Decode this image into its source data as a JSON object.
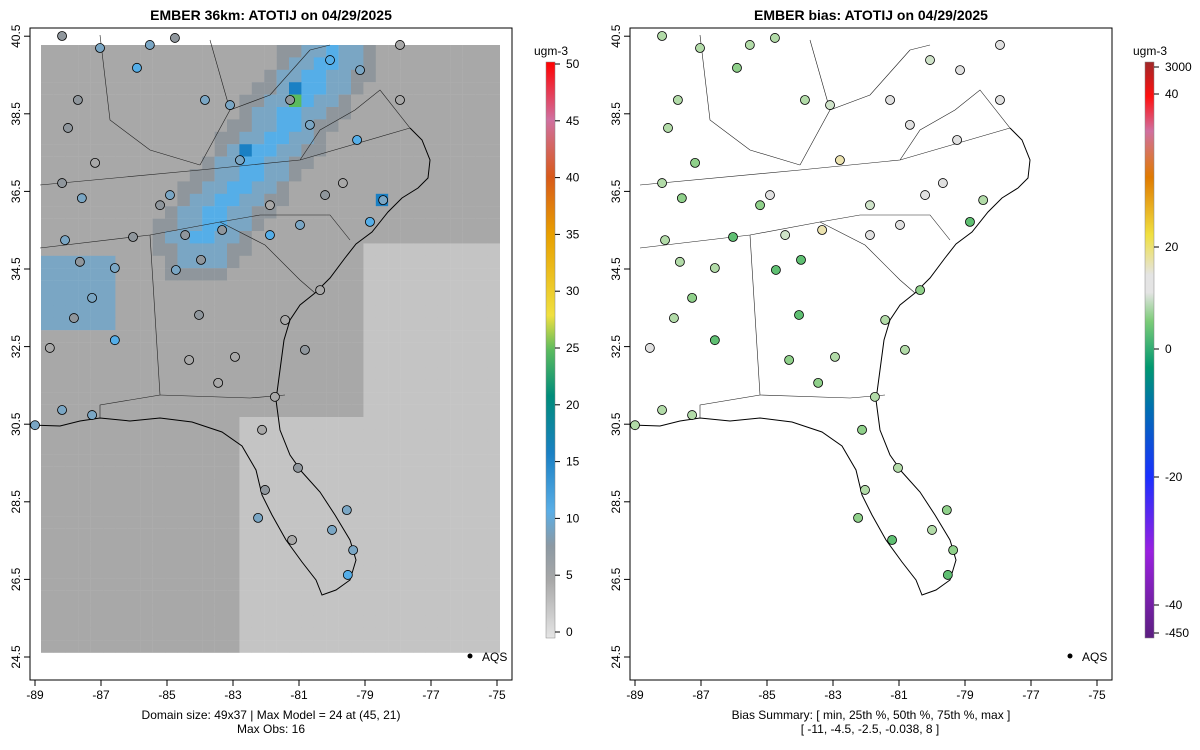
{
  "chart_data": [
    {
      "type": "heatmap",
      "title": "EMBER 36km: ATOTIJ on 04/29/2025",
      "units": "ugm-3",
      "xticks": [
        "-89",
        "-87",
        "-85",
        "-83",
        "-81",
        "-79",
        "-77",
        "-75"
      ],
      "yticks": [
        "24.5",
        "26.5",
        "28.5",
        "30.5",
        "32.5",
        "34.5",
        "36.5",
        "38.5",
        "40.5"
      ],
      "colorbar_ticks": [
        "0",
        "5",
        "10",
        "15",
        "20",
        "25",
        "30",
        "35",
        "40",
        "45",
        "50"
      ],
      "colorbar_range": [
        0,
        50
      ],
      "legend": "AQS",
      "legend_position": "bottom-right",
      "footer1": "Domain size: 49x37 | Max Model = 24 at (45, 21)",
      "footer2": "Max Obs: 16"
    },
    {
      "type": "scatter",
      "title": "EMBER bias: ATOTIJ on 04/29/2025",
      "units": "ugm-3",
      "xticks": [
        "-89",
        "-87",
        "-85",
        "-83",
        "-81",
        "-79",
        "-77",
        "-75"
      ],
      "yticks": [
        "24.5",
        "26.5",
        "28.5",
        "30.5",
        "32.5",
        "34.5",
        "36.5",
        "38.5",
        "40.5"
      ],
      "colorbar_ticks": [
        "3000",
        "40",
        "20",
        "0",
        "-20",
        "-40",
        "-450"
      ],
      "legend": "AQS",
      "legend_position": "bottom-right",
      "footer1": "Bias Summary: [ min, 25th %, 50th %, 75th %, max ]",
      "footer2": "[ -11,   -4.5,   -2.5,   -0.038,   8 ]"
    }
  ],
  "stations": [
    [
      -88.18,
      40.5,
      6,
      -3
    ],
    [
      -87.03,
      40.19,
      9,
      -4
    ],
    [
      -85.91,
      39.68,
      10,
      -5
    ],
    [
      -85.52,
      40.27,
      9,
      -3
    ],
    [
      -84.76,
      40.45,
      7,
      -4
    ],
    [
      -87.7,
      38.85,
      7,
      -3
    ],
    [
      -88.0,
      38.13,
      6,
      -4
    ],
    [
      -87.18,
      37.23,
      5,
      -6
    ],
    [
      -88.18,
      36.71,
      6,
      -3
    ],
    [
      -87.58,
      36.32,
      8,
      -5
    ],
    [
      -86.03,
      35.32,
      6,
      -7
    ],
    [
      -88.09,
      35.24,
      9,
      -4
    ],
    [
      -87.64,
      34.68,
      7,
      -3
    ],
    [
      -86.58,
      34.52,
      8,
      -4
    ],
    [
      -87.27,
      33.75,
      9,
      -5
    ],
    [
      -87.82,
      33.23,
      7,
      -4
    ],
    [
      -86.58,
      32.66,
      10,
      -7
    ],
    [
      -88.55,
      32.46,
      4,
      0
    ],
    [
      -88.18,
      30.86,
      8,
      -3
    ],
    [
      -87.27,
      30.73,
      9,
      -4
    ],
    [
      -89.0,
      30.47,
      9,
      -3
    ],
    [
      -84.91,
      36.4,
      8,
      -1
    ],
    [
      -85.21,
      36.14,
      7,
      -6
    ],
    [
      -84.45,
      35.37,
      6,
      -2
    ],
    [
      -83.33,
      35.5,
      6,
      5
    ],
    [
      -83.97,
      34.73,
      7,
      -7
    ],
    [
      -84.73,
      34.47,
      8,
      -8
    ],
    [
      -84.03,
      33.31,
      7,
      -9
    ],
    [
      -84.33,
      32.15,
      5,
      -5
    ],
    [
      -82.94,
      32.23,
      4,
      -4
    ],
    [
      -83.45,
      31.56,
      4,
      -6
    ],
    [
      -81.73,
      31.2,
      4,
      -3
    ],
    [
      -82.12,
      30.35,
      5,
      -5
    ],
    [
      -81.03,
      29.37,
      6,
      -4
    ],
    [
      -82.03,
      28.8,
      7,
      -3
    ],
    [
      -82.24,
      28.08,
      8,
      -5
    ],
    [
      -81.21,
      27.51,
      5,
      -7
    ],
    [
      -80.0,
      27.77,
      9,
      -4
    ],
    [
      -79.55,
      28.28,
      8,
      -6
    ],
    [
      -79.36,
      27.25,
      9,
      -5
    ],
    [
      -79.52,
      26.61,
      12,
      -8
    ],
    [
      -80.36,
      33.95,
      4,
      -6
    ],
    [
      -81.42,
      33.18,
      5,
      -4
    ],
    [
      -80.82,
      32.41,
      6,
      -3
    ],
    [
      -81.88,
      35.37,
      11,
      1
    ],
    [
      -80.97,
      35.63,
      9,
      -1
    ],
    [
      -80.21,
      36.4,
      6,
      0
    ],
    [
      -79.67,
      36.71,
      5,
      -1
    ],
    [
      -78.85,
      35.71,
      10,
      -9
    ],
    [
      -78.45,
      36.27,
      9,
      -4
    ],
    [
      -79.24,
      37.82,
      11,
      -1
    ],
    [
      -80.67,
      38.21,
      8,
      0
    ],
    [
      -81.27,
      38.85,
      6,
      0
    ],
    [
      -83.09,
      38.72,
      8,
      -2
    ],
    [
      -83.85,
      38.85,
      9,
      -3
    ],
    [
      -82.79,
      37.3,
      9,
      4
    ],
    [
      -81.88,
      36.14,
      5,
      -2
    ],
    [
      -80.06,
      39.88,
      10,
      -2
    ],
    [
      -77.94,
      40.27,
      4,
      0
    ],
    [
      -79.15,
      39.62,
      9,
      0
    ],
    [
      -77.94,
      38.85,
      5,
      0
    ]
  ]
}
